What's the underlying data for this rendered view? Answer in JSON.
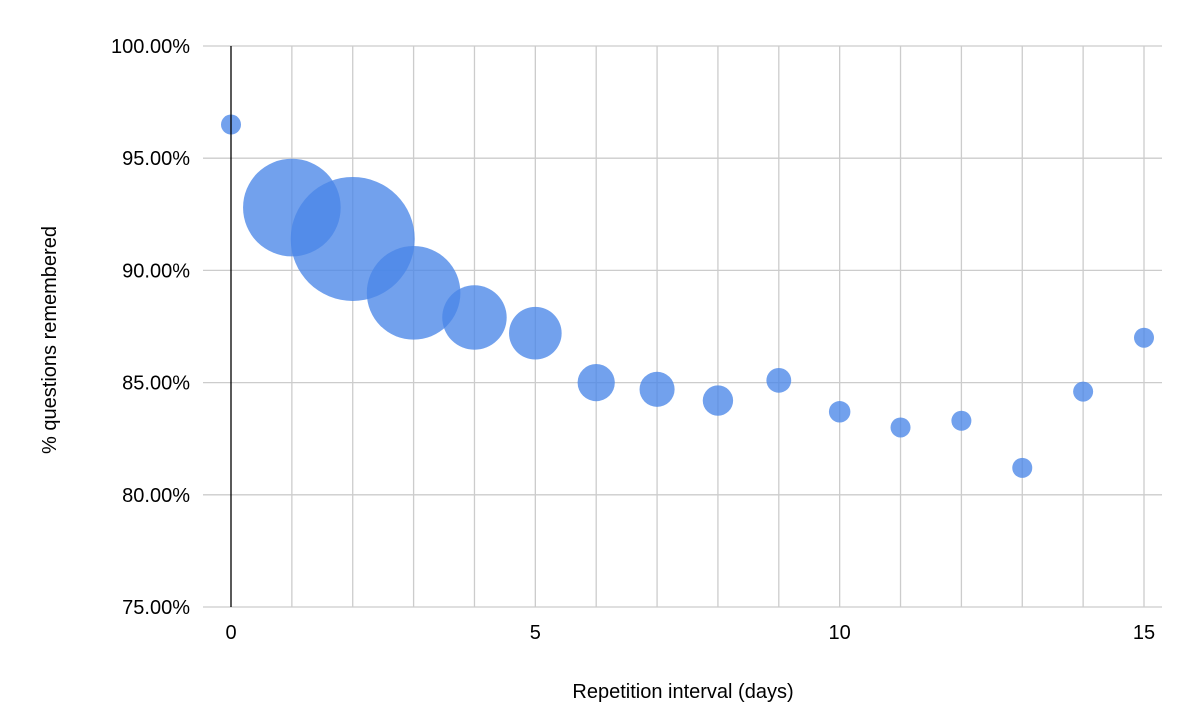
{
  "chart_data": {
    "type": "scatter",
    "subtype": "bubble",
    "title": "",
    "xlabel": "Repetition interval (days)",
    "ylabel": "% questions remembered",
    "xlim": [
      0,
      15
    ],
    "ylim": [
      75,
      100
    ],
    "x_ticks": [
      0,
      5,
      10,
      15
    ],
    "x_tick_labels": [
      "0",
      "5",
      "10",
      "15"
    ],
    "x_minor_gridlines": [
      1,
      2,
      3,
      4,
      6,
      7,
      8,
      9,
      11,
      12,
      13,
      14
    ],
    "y_ticks": [
      75,
      80,
      85,
      90,
      95,
      100
    ],
    "y_tick_labels": [
      "75.00%",
      "80.00%",
      "85.00%",
      "90.00%",
      "95.00%",
      "100.00%"
    ],
    "grid": true,
    "legend": "none",
    "bubble_color": "#4a86e8",
    "bubble_opacity": 0.78,
    "points": [
      {
        "x": 0,
        "y": 96.5,
        "size": 1
      },
      {
        "x": 1,
        "y": 92.8,
        "size": 62
      },
      {
        "x": 2,
        "y": 91.4,
        "size": 100
      },
      {
        "x": 3,
        "y": 89.0,
        "size": 57
      },
      {
        "x": 4,
        "y": 87.9,
        "size": 27
      },
      {
        "x": 5,
        "y": 87.2,
        "size": 18
      },
      {
        "x": 6,
        "y": 85.0,
        "size": 9
      },
      {
        "x": 7,
        "y": 84.7,
        "size": 8
      },
      {
        "x": 8,
        "y": 84.2,
        "size": 6
      },
      {
        "x": 9,
        "y": 85.1,
        "size": 4
      },
      {
        "x": 10,
        "y": 83.7,
        "size": 3
      },
      {
        "x": 11,
        "y": 83.0,
        "size": 2.5
      },
      {
        "x": 12,
        "y": 83.3,
        "size": 1.5
      },
      {
        "x": 13,
        "y": 81.2,
        "size": 1.8
      },
      {
        "x": 14,
        "y": 84.6,
        "size": 1
      },
      {
        "x": 15,
        "y": 87.0,
        "size": 0.3
      }
    ]
  }
}
